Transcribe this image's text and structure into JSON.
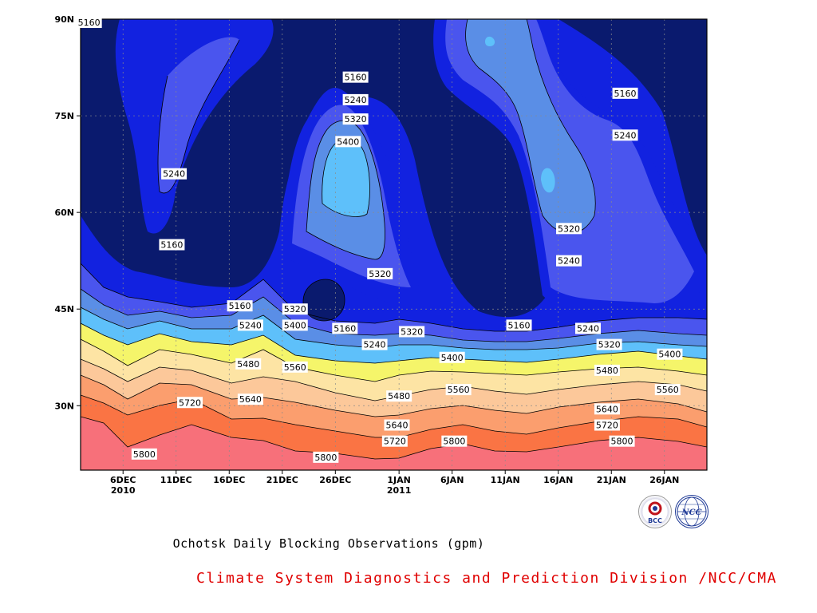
{
  "title": "Ochotsk Daily Blocking Observations (gpm)",
  "credit": "Climate System Diagnostics and Prediction Division /NCC/CMA",
  "logos": [
    {
      "name": "bcc-logo",
      "text": "BCC"
    },
    {
      "name": "ncc-logo",
      "text": "NCC"
    }
  ],
  "chart_data": {
    "type": "contour",
    "title": "Ochotsk Daily Blocking Observations (gpm)",
    "xlabel": "",
    "ylabel": "",
    "x_range": [
      "2010-12-02",
      "2011-01-30"
    ],
    "y_range": [
      20,
      90
    ],
    "x_ticks": [
      {
        "label": "6DEC",
        "sub": "2010",
        "day": 4
      },
      {
        "label": "11DEC",
        "sub": "",
        "day": 9
      },
      {
        "label": "16DEC",
        "sub": "",
        "day": 14
      },
      {
        "label": "21DEC",
        "sub": "",
        "day": 19
      },
      {
        "label": "26DEC",
        "sub": "",
        "day": 24
      },
      {
        "label": "1JAN",
        "sub": "2011",
        "day": 30
      },
      {
        "label": "6JAN",
        "sub": "",
        "day": 35
      },
      {
        "label": "11JAN",
        "sub": "",
        "day": 40
      },
      {
        "label": "16JAN",
        "sub": "",
        "day": 45
      },
      {
        "label": "21JAN",
        "sub": "",
        "day": 50
      },
      {
        "label": "26JAN",
        "sub": "",
        "day": 55
      }
    ],
    "y_ticks": [
      {
        "label": "30N",
        "lat": 30
      },
      {
        "label": "45N",
        "lat": 45
      },
      {
        "label": "60N",
        "lat": 60
      },
      {
        "label": "75N",
        "lat": 75
      },
      {
        "label": "90N",
        "lat": 90
      }
    ],
    "contour_levels": [
      5160,
      5240,
      5320,
      5400,
      5480,
      5560,
      5640,
      5720,
      5800
    ],
    "fill_colors": {
      "below_5160": "#0a1a6e",
      "5160_5240": "#1222e0",
      "5240_5320": "#4a55ee",
      "5320_5400": "#5a8ee6",
      "5400_5480": "#5ec0fa",
      "5480_5560": "#f5f56a",
      "5560_5640": "#fde4a4",
      "5640_5720": "#fbac74",
      "5720_5800": "#fa7444",
      "above_5800": "#f7707a"
    },
    "contour_labels": [
      {
        "text": "5160",
        "day": 0.8,
        "lat": 89.5
      },
      {
        "text": "5240",
        "day": 8.8,
        "lat": 66
      },
      {
        "text": "5160",
        "day": 8.6,
        "lat": 55
      },
      {
        "text": "5160",
        "day": 15,
        "lat": 45.5
      },
      {
        "text": "5240",
        "day": 16,
        "lat": 42.5
      },
      {
        "text": "5320",
        "day": 20.2,
        "lat": 45
      },
      {
        "text": "5400",
        "day": 20.2,
        "lat": 42.5
      },
      {
        "text": "5480",
        "day": 15.8,
        "lat": 36.5
      },
      {
        "text": "5560",
        "day": 20.2,
        "lat": 36
      },
      {
        "text": "5640",
        "day": 16,
        "lat": 31
      },
      {
        "text": "5720",
        "day": 10.3,
        "lat": 30.5
      },
      {
        "text": "5800",
        "day": 6,
        "lat": 22.5
      },
      {
        "text": "5160",
        "day": 25.9,
        "lat": 81
      },
      {
        "text": "5240",
        "day": 25.9,
        "lat": 77.5
      },
      {
        "text": "5320",
        "day": 25.9,
        "lat": 74.5
      },
      {
        "text": "5400",
        "day": 25.2,
        "lat": 71
      },
      {
        "text": "5320",
        "day": 28.2,
        "lat": 50.5
      },
      {
        "text": "5160",
        "day": 24.9,
        "lat": 42
      },
      {
        "text": "5240",
        "day": 27.7,
        "lat": 39.5
      },
      {
        "text": "5320",
        "day": 31.2,
        "lat": 41.5
      },
      {
        "text": "5400",
        "day": 35,
        "lat": 37.5
      },
      {
        "text": "5480",
        "day": 30,
        "lat": 31.5
      },
      {
        "text": "5560",
        "day": 35.6,
        "lat": 32.5
      },
      {
        "text": "5640",
        "day": 29.8,
        "lat": 27
      },
      {
        "text": "5720",
        "day": 29.6,
        "lat": 24.5
      },
      {
        "text": "5800",
        "day": 35.2,
        "lat": 24.5
      },
      {
        "text": "5800",
        "day": 23.1,
        "lat": 22
      },
      {
        "text": "5160",
        "day": 41.3,
        "lat": 42.5
      },
      {
        "text": "5320",
        "day": 46,
        "lat": 57.5
      },
      {
        "text": "5240",
        "day": 46,
        "lat": 52.5
      },
      {
        "text": "5240",
        "day": 47.8,
        "lat": 42
      },
      {
        "text": "5320",
        "day": 49.8,
        "lat": 39.5
      },
      {
        "text": "5400",
        "day": 55.5,
        "lat": 38
      },
      {
        "text": "5480",
        "day": 49.6,
        "lat": 35.5
      },
      {
        "text": "5560",
        "day": 55.3,
        "lat": 32.5
      },
      {
        "text": "5640",
        "day": 49.6,
        "lat": 29.5
      },
      {
        "text": "5720",
        "day": 49.6,
        "lat": 27
      },
      {
        "text": "5800",
        "day": 51,
        "lat": 24.5
      },
      {
        "text": "5160",
        "day": 51.3,
        "lat": 78.5
      },
      {
        "text": "5240",
        "day": 51.3,
        "lat": 72
      }
    ]
  }
}
